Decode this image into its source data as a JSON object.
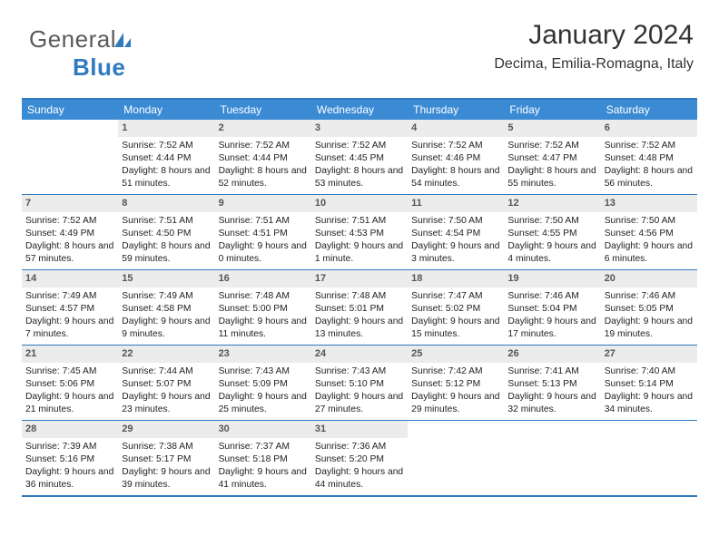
{
  "logo": {
    "text1": "General",
    "text2": "Blue"
  },
  "header": {
    "month_title": "January 2024",
    "location": "Decima, Emilia-Romagna, Italy"
  },
  "colors": {
    "accent": "#3b8bd4",
    "border": "#2f7ac0",
    "daynum_bg": "#ececec",
    "text": "#222222"
  },
  "weekdays": [
    "Sunday",
    "Monday",
    "Tuesday",
    "Wednesday",
    "Thursday",
    "Friday",
    "Saturday"
  ],
  "weeks": [
    [
      {
        "num": "",
        "sunrise": "",
        "sunset": "",
        "daylight": ""
      },
      {
        "num": "1",
        "sunrise": "Sunrise: 7:52 AM",
        "sunset": "Sunset: 4:44 PM",
        "daylight": "Daylight: 8 hours and 51 minutes."
      },
      {
        "num": "2",
        "sunrise": "Sunrise: 7:52 AM",
        "sunset": "Sunset: 4:44 PM",
        "daylight": "Daylight: 8 hours and 52 minutes."
      },
      {
        "num": "3",
        "sunrise": "Sunrise: 7:52 AM",
        "sunset": "Sunset: 4:45 PM",
        "daylight": "Daylight: 8 hours and 53 minutes."
      },
      {
        "num": "4",
        "sunrise": "Sunrise: 7:52 AM",
        "sunset": "Sunset: 4:46 PM",
        "daylight": "Daylight: 8 hours and 54 minutes."
      },
      {
        "num": "5",
        "sunrise": "Sunrise: 7:52 AM",
        "sunset": "Sunset: 4:47 PM",
        "daylight": "Daylight: 8 hours and 55 minutes."
      },
      {
        "num": "6",
        "sunrise": "Sunrise: 7:52 AM",
        "sunset": "Sunset: 4:48 PM",
        "daylight": "Daylight: 8 hours and 56 minutes."
      }
    ],
    [
      {
        "num": "7",
        "sunrise": "Sunrise: 7:52 AM",
        "sunset": "Sunset: 4:49 PM",
        "daylight": "Daylight: 8 hours and 57 minutes."
      },
      {
        "num": "8",
        "sunrise": "Sunrise: 7:51 AM",
        "sunset": "Sunset: 4:50 PM",
        "daylight": "Daylight: 8 hours and 59 minutes."
      },
      {
        "num": "9",
        "sunrise": "Sunrise: 7:51 AM",
        "sunset": "Sunset: 4:51 PM",
        "daylight": "Daylight: 9 hours and 0 minutes."
      },
      {
        "num": "10",
        "sunrise": "Sunrise: 7:51 AM",
        "sunset": "Sunset: 4:53 PM",
        "daylight": "Daylight: 9 hours and 1 minute."
      },
      {
        "num": "11",
        "sunrise": "Sunrise: 7:50 AM",
        "sunset": "Sunset: 4:54 PM",
        "daylight": "Daylight: 9 hours and 3 minutes."
      },
      {
        "num": "12",
        "sunrise": "Sunrise: 7:50 AM",
        "sunset": "Sunset: 4:55 PM",
        "daylight": "Daylight: 9 hours and 4 minutes."
      },
      {
        "num": "13",
        "sunrise": "Sunrise: 7:50 AM",
        "sunset": "Sunset: 4:56 PM",
        "daylight": "Daylight: 9 hours and 6 minutes."
      }
    ],
    [
      {
        "num": "14",
        "sunrise": "Sunrise: 7:49 AM",
        "sunset": "Sunset: 4:57 PM",
        "daylight": "Daylight: 9 hours and 7 minutes."
      },
      {
        "num": "15",
        "sunrise": "Sunrise: 7:49 AM",
        "sunset": "Sunset: 4:58 PM",
        "daylight": "Daylight: 9 hours and 9 minutes."
      },
      {
        "num": "16",
        "sunrise": "Sunrise: 7:48 AM",
        "sunset": "Sunset: 5:00 PM",
        "daylight": "Daylight: 9 hours and 11 minutes."
      },
      {
        "num": "17",
        "sunrise": "Sunrise: 7:48 AM",
        "sunset": "Sunset: 5:01 PM",
        "daylight": "Daylight: 9 hours and 13 minutes."
      },
      {
        "num": "18",
        "sunrise": "Sunrise: 7:47 AM",
        "sunset": "Sunset: 5:02 PM",
        "daylight": "Daylight: 9 hours and 15 minutes."
      },
      {
        "num": "19",
        "sunrise": "Sunrise: 7:46 AM",
        "sunset": "Sunset: 5:04 PM",
        "daylight": "Daylight: 9 hours and 17 minutes."
      },
      {
        "num": "20",
        "sunrise": "Sunrise: 7:46 AM",
        "sunset": "Sunset: 5:05 PM",
        "daylight": "Daylight: 9 hours and 19 minutes."
      }
    ],
    [
      {
        "num": "21",
        "sunrise": "Sunrise: 7:45 AM",
        "sunset": "Sunset: 5:06 PM",
        "daylight": "Daylight: 9 hours and 21 minutes."
      },
      {
        "num": "22",
        "sunrise": "Sunrise: 7:44 AM",
        "sunset": "Sunset: 5:07 PM",
        "daylight": "Daylight: 9 hours and 23 minutes."
      },
      {
        "num": "23",
        "sunrise": "Sunrise: 7:43 AM",
        "sunset": "Sunset: 5:09 PM",
        "daylight": "Daylight: 9 hours and 25 minutes."
      },
      {
        "num": "24",
        "sunrise": "Sunrise: 7:43 AM",
        "sunset": "Sunset: 5:10 PM",
        "daylight": "Daylight: 9 hours and 27 minutes."
      },
      {
        "num": "25",
        "sunrise": "Sunrise: 7:42 AM",
        "sunset": "Sunset: 5:12 PM",
        "daylight": "Daylight: 9 hours and 29 minutes."
      },
      {
        "num": "26",
        "sunrise": "Sunrise: 7:41 AM",
        "sunset": "Sunset: 5:13 PM",
        "daylight": "Daylight: 9 hours and 32 minutes."
      },
      {
        "num": "27",
        "sunrise": "Sunrise: 7:40 AM",
        "sunset": "Sunset: 5:14 PM",
        "daylight": "Daylight: 9 hours and 34 minutes."
      }
    ],
    [
      {
        "num": "28",
        "sunrise": "Sunrise: 7:39 AM",
        "sunset": "Sunset: 5:16 PM",
        "daylight": "Daylight: 9 hours and 36 minutes."
      },
      {
        "num": "29",
        "sunrise": "Sunrise: 7:38 AM",
        "sunset": "Sunset: 5:17 PM",
        "daylight": "Daylight: 9 hours and 39 minutes."
      },
      {
        "num": "30",
        "sunrise": "Sunrise: 7:37 AM",
        "sunset": "Sunset: 5:18 PM",
        "daylight": "Daylight: 9 hours and 41 minutes."
      },
      {
        "num": "31",
        "sunrise": "Sunrise: 7:36 AM",
        "sunset": "Sunset: 5:20 PM",
        "daylight": "Daylight: 9 hours and 44 minutes."
      },
      {
        "num": "",
        "sunrise": "",
        "sunset": "",
        "daylight": ""
      },
      {
        "num": "",
        "sunrise": "",
        "sunset": "",
        "daylight": ""
      },
      {
        "num": "",
        "sunrise": "",
        "sunset": "",
        "daylight": ""
      }
    ]
  ]
}
